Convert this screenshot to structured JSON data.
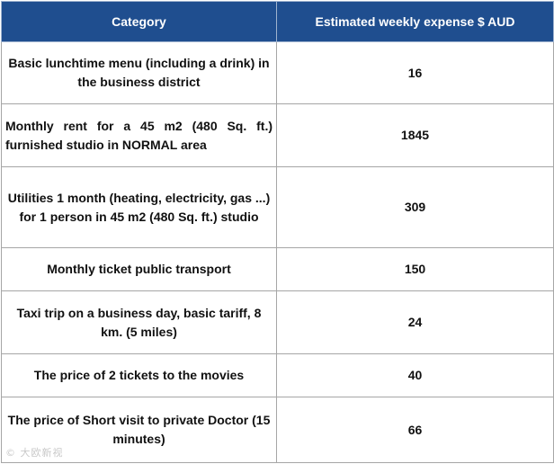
{
  "table": {
    "headers": {
      "category": "Category",
      "expense": "Estimated weekly expense $ AUD"
    },
    "rows": [
      {
        "category": "Basic lunchtime menu (including a drink) in the business district",
        "value": "16"
      },
      {
        "category": "Monthly rent for a 45 m2 (480 Sq. ft.) furnished studio in NORMAL area",
        "value": "1845"
      },
      {
        "category": "Utilities 1 month (heating, electricity, gas ...) for 1 person in 45 m2 (480 Sq. ft.) studio",
        "value": "309"
      },
      {
        "category": "Monthly ticket public transport",
        "value": "150"
      },
      {
        "category": "Taxi trip on a business day, basic tariff, 8 km. (5 miles)",
        "value": "24"
      },
      {
        "category": "The price of 2 tickets to the movies",
        "value": "40"
      },
      {
        "category": "The price of Short visit to private Doctor (15 minutes)",
        "value": "66"
      }
    ]
  },
  "watermark": "© 大欧新视"
}
